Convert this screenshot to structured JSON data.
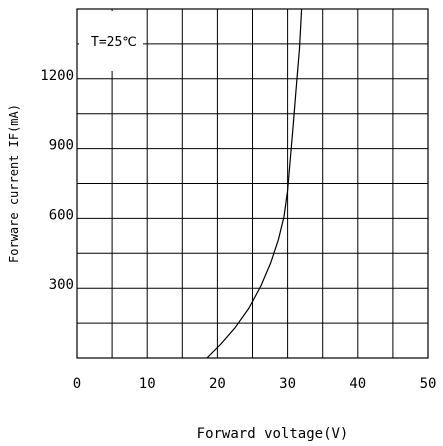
{
  "chart_data": {
    "type": "line",
    "title": "",
    "annotation": "T=25℃",
    "xlabel": "Forward voltage(V)",
    "ylabel": "Forware current IF(mA)",
    "xlim": [
      0,
      50
    ],
    "ylim": [
      0,
      1500
    ],
    "x_ticks": [
      0,
      10,
      20,
      30,
      40,
      50
    ],
    "x_tick_labels": [
      "0",
      "10",
      "20",
      "30",
      "40",
      "50"
    ],
    "y_ticks": [
      300,
      600,
      900,
      1200
    ],
    "y_tick_labels": [
      "300",
      "600",
      "900",
      "1200"
    ],
    "grid": true,
    "grid_x_step": 5,
    "grid_y_step": 150,
    "series": [
      {
        "x": [
          18.5,
          20.5,
          22.5,
          24.5,
          26.2,
          27.6,
          28.7,
          29.5,
          30.0,
          30.4,
          30.8,
          31.2,
          31.7,
          32.0
        ],
        "y": [
          0,
          60,
          130,
          215,
          310,
          410,
          510,
          610,
          720,
          860,
          1000,
          1150,
          1330,
          1500
        ]
      }
    ],
    "colors": {
      "line": "#000000",
      "grid": "#000000",
      "background": "#ffffff"
    }
  }
}
